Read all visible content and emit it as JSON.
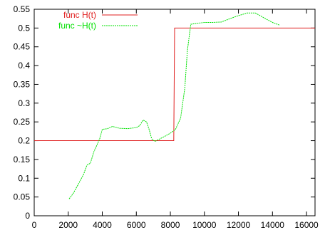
{
  "chart_data": {
    "type": "line",
    "xlim": [
      0,
      16500
    ],
    "ylim": [
      0,
      0.55
    ],
    "x_ticks": [
      0,
      2000,
      4000,
      6000,
      8000,
      10000,
      12000,
      14000,
      16000
    ],
    "y_ticks": [
      0,
      0.05,
      0.1,
      0.15,
      0.2,
      0.25,
      0.3,
      0.35,
      0.4,
      0.45,
      0.5,
      0.55
    ],
    "x_tick_labels": [
      "0",
      "2000",
      "4000",
      "6000",
      "8000",
      "10000",
      "12000",
      "14000",
      "16000"
    ],
    "y_tick_labels": [
      "0",
      "0.05",
      "0.1",
      "0.15",
      "0.2",
      "0.25",
      "0.3",
      "0.35",
      "0.4",
      "0.45",
      "0.5",
      "0.55"
    ],
    "grid": false,
    "legend_position": "top-left",
    "series": [
      {
        "name": "func H(t)",
        "color": "#e02020",
        "style": "solid",
        "points": [
          [
            0,
            0.2
          ],
          [
            8200,
            0.2
          ],
          [
            8250,
            0.5
          ],
          [
            16500,
            0.5
          ]
        ]
      },
      {
        "name": "func ~H(t)",
        "color": "#00e000",
        "style": "dashed",
        "points": [
          [
            2050,
            0.045
          ],
          [
            2300,
            0.06
          ],
          [
            2600,
            0.085
          ],
          [
            2900,
            0.11
          ],
          [
            3100,
            0.135
          ],
          [
            3300,
            0.14
          ],
          [
            3500,
            0.17
          ],
          [
            3700,
            0.19
          ],
          [
            3850,
            0.205
          ],
          [
            4000,
            0.23
          ],
          [
            4300,
            0.232
          ],
          [
            4600,
            0.238
          ],
          [
            5000,
            0.233
          ],
          [
            5500,
            0.232
          ],
          [
            6000,
            0.235
          ],
          [
            6200,
            0.24
          ],
          [
            6400,
            0.255
          ],
          [
            6600,
            0.25
          ],
          [
            6750,
            0.23
          ],
          [
            6900,
            0.205
          ],
          [
            7100,
            0.198
          ],
          [
            7300,
            0.203
          ],
          [
            7600,
            0.21
          ],
          [
            8000,
            0.22
          ],
          [
            8300,
            0.23
          ],
          [
            8600,
            0.26
          ],
          [
            8850,
            0.34
          ],
          [
            9000,
            0.44
          ],
          [
            9200,
            0.51
          ],
          [
            9500,
            0.512
          ],
          [
            10000,
            0.515
          ],
          [
            10500,
            0.515
          ],
          [
            11000,
            0.516
          ],
          [
            11500,
            0.525
          ],
          [
            12000,
            0.533
          ],
          [
            12500,
            0.54
          ],
          [
            13000,
            0.54
          ],
          [
            13500,
            0.527
          ],
          [
            14000,
            0.515
          ],
          [
            14400,
            0.508
          ]
        ]
      }
    ]
  }
}
